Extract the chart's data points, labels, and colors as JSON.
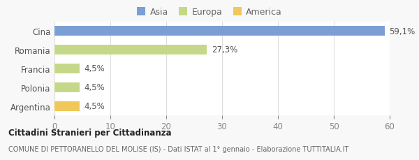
{
  "categories": [
    "Cina",
    "Romania",
    "Francia",
    "Polonia",
    "Argentina"
  ],
  "values": [
    59.1,
    27.3,
    4.5,
    4.5,
    4.5
  ],
  "colors": [
    "#7b9fd4",
    "#c5d88a",
    "#c5d88a",
    "#c5d88a",
    "#f0c85a"
  ],
  "labels": [
    "59,1%",
    "27,3%",
    "4,5%",
    "4,5%",
    "4,5%"
  ],
  "legend_items": [
    {
      "label": "Asia",
      "color": "#7b9fd4"
    },
    {
      "label": "Europa",
      "color": "#c5d88a"
    },
    {
      "label": "America",
      "color": "#f0c85a"
    }
  ],
  "xlim": [
    0,
    60
  ],
  "xticks": [
    0,
    10,
    20,
    30,
    40,
    50,
    60
  ],
  "title_bold": "Cittadini Stranieri per Cittadinanza",
  "subtitle": "COMUNE DI PETTORANELLO DEL MOLISE (IS) - Dati ISTAT al 1° gennaio - Elaborazione TUTTITALIA.IT",
  "background_color": "#f8f8f8",
  "plot_bg_color": "#ffffff",
  "grid_color": "#dddddd",
  "bar_height": 0.5,
  "label_fontsize": 8.5,
  "tick_fontsize": 8.5,
  "ylabel_fontsize": 8.5
}
